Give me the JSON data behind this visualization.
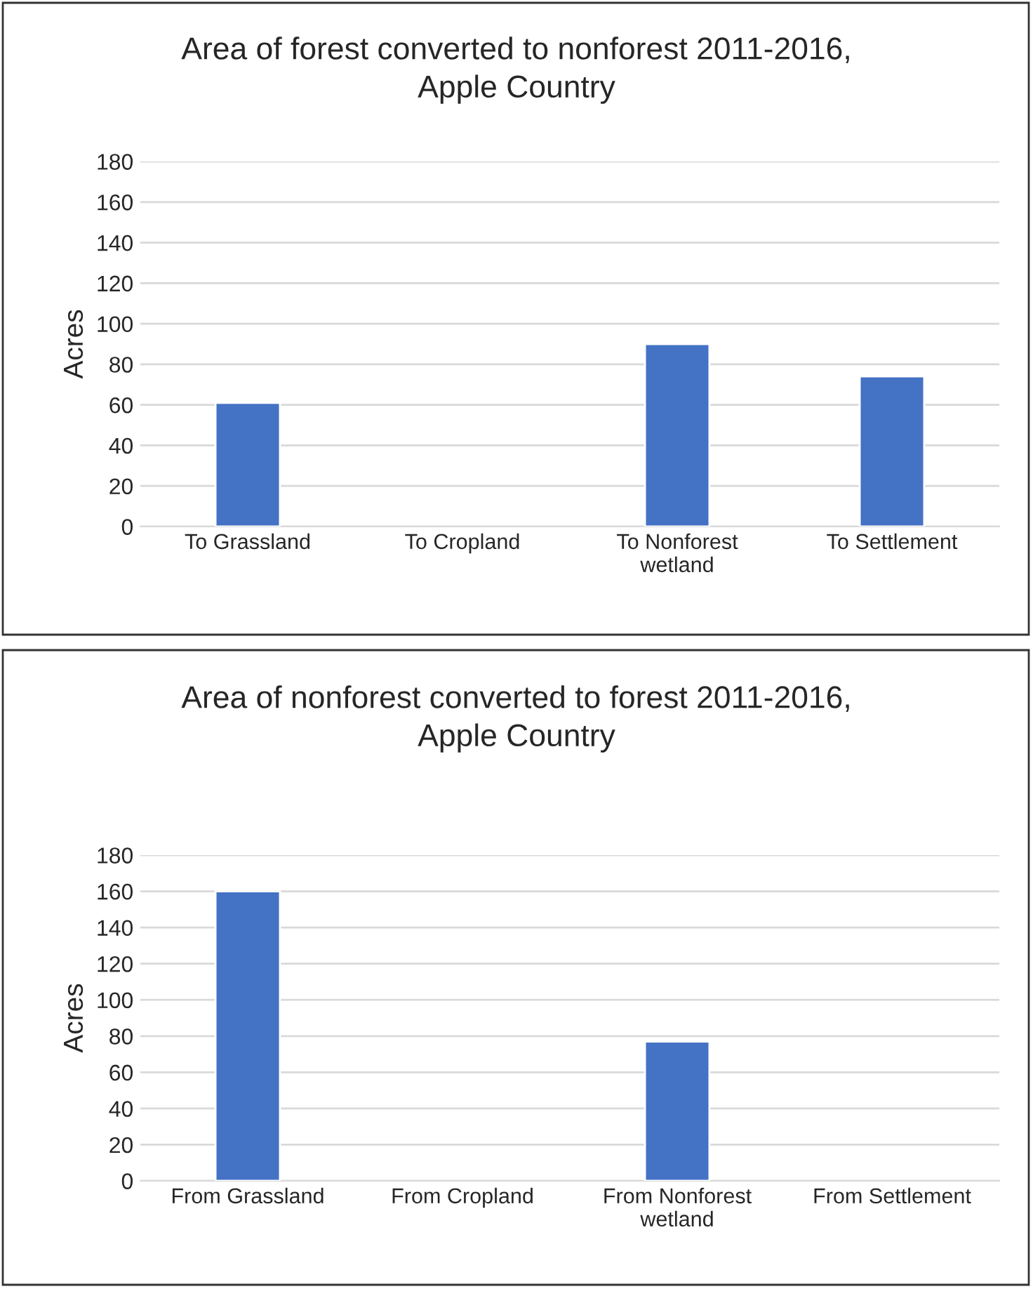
{
  "chart_data": [
    {
      "type": "bar",
      "title": "Area of forest converted to nonforest 2011-2016,\nApple Country",
      "ylabel": "Acres",
      "categories": [
        "To Grassland",
        "To Cropland",
        "To Nonforest\nwetland",
        "To Settlement"
      ],
      "values": [
        61,
        null,
        90,
        74
      ],
      "color": "#4472c4",
      "ylim": [
        0,
        180
      ],
      "yticks": [
        0,
        20,
        40,
        60,
        80,
        100,
        120,
        140,
        160,
        180
      ],
      "grid": "y"
    },
    {
      "type": "bar",
      "title": "Area of nonforest converted to forest 2011-2016,\nApple Country",
      "ylabel": "Acres",
      "categories": [
        "From Grassland",
        "From Cropland",
        "From Nonforest\nwetland",
        "From Settlement"
      ],
      "values": [
        160,
        null,
        77,
        null
      ],
      "color": "#4472c4",
      "ylim": [
        0,
        180
      ],
      "yticks": [
        0,
        20,
        40,
        60,
        80,
        100,
        120,
        140,
        160,
        180
      ],
      "grid": "y"
    }
  ]
}
